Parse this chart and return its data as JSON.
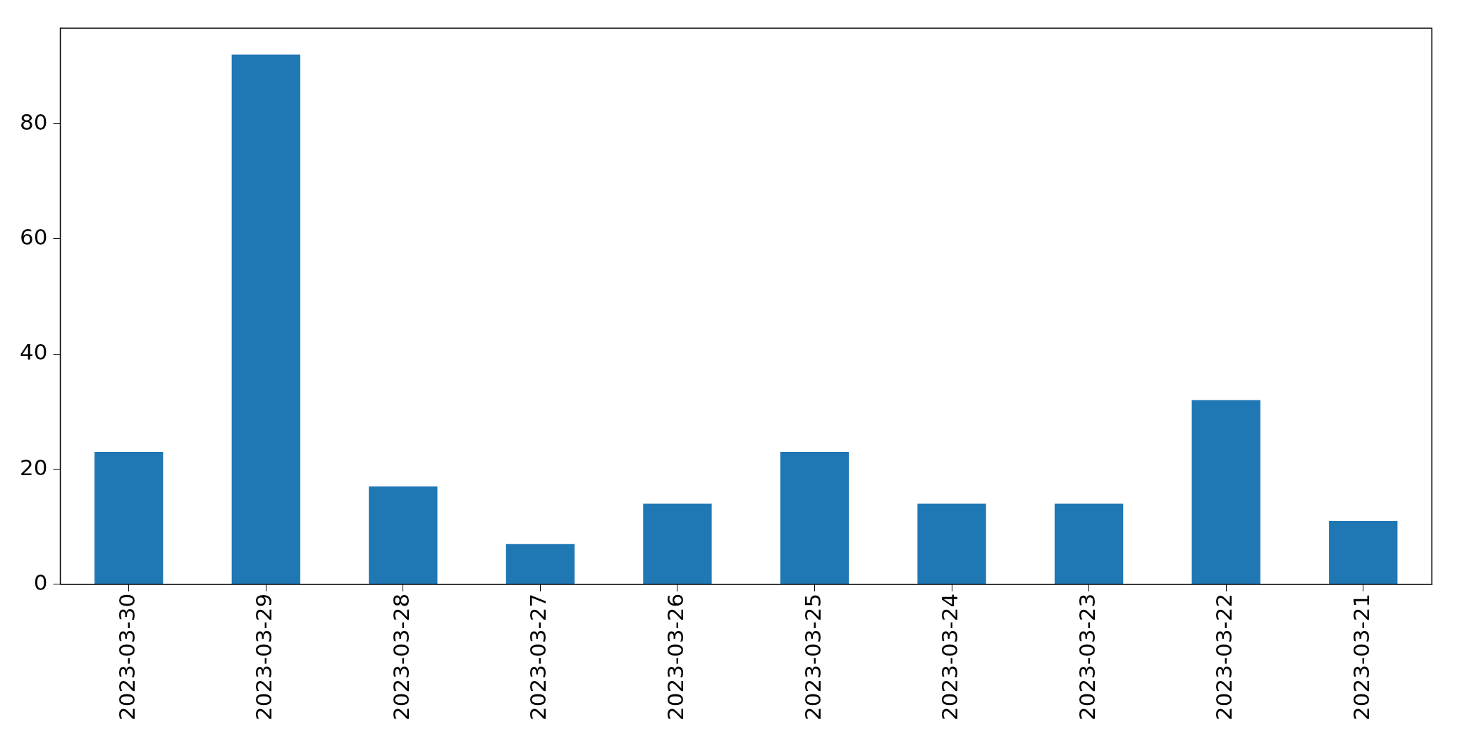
{
  "chart_data": {
    "type": "bar",
    "categories": [
      "2023-03-30",
      "2023-03-29",
      "2023-03-28",
      "2023-03-27",
      "2023-03-26",
      "2023-03-25",
      "2023-03-24",
      "2023-03-23",
      "2023-03-22",
      "2023-03-21"
    ],
    "values": [
      23,
      92,
      17,
      7,
      14,
      23,
      14,
      14,
      32,
      11
    ],
    "color": "#1f77b4",
    "ylim": [
      0,
      96.6
    ],
    "yticks": [
      0,
      20,
      40,
      60,
      80
    ],
    "grid": false,
    "legend": false
  }
}
